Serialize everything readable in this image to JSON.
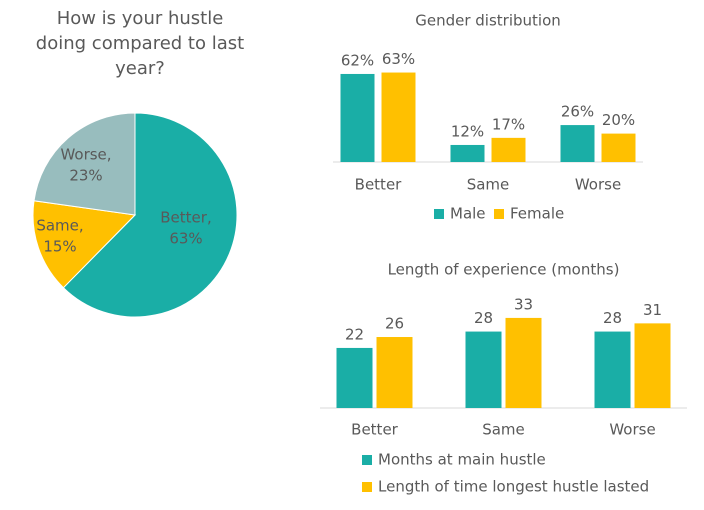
{
  "chart_data": [
    {
      "type": "pie",
      "title": "How is your hustle doing compared to last year?",
      "categories": [
        "Better,",
        "Same,",
        "Worse,"
      ],
      "values": [
        63,
        15,
        23
      ],
      "value_labels": [
        "63%",
        "15%",
        "23%"
      ],
      "colors": [
        "#1aaea6",
        "#ffc000",
        "#98bdbe"
      ]
    },
    {
      "type": "bar",
      "title": "Gender distribution",
      "categories": [
        "Better",
        "Same",
        "Worse"
      ],
      "series": [
        {
          "name": "Male",
          "color": "#1aaea6",
          "values": [
            62,
            12,
            26
          ],
          "value_labels": [
            "62%",
            "12%",
            "26%"
          ]
        },
        {
          "name": "Female",
          "color": "#ffc000",
          "values": [
            63,
            17,
            20
          ],
          "value_labels": [
            "63%",
            "17%",
            "20%"
          ]
        }
      ]
    },
    {
      "type": "bar",
      "title": "Length of experience (months)",
      "categories": [
        "Better",
        "Same",
        "Worse"
      ],
      "series": [
        {
          "name": "Months at main hustle",
          "color": "#1aaea6",
          "values": [
            22,
            28,
            28
          ]
        },
        {
          "name": "Length of time longest hustle lasted",
          "color": "#ffc000",
          "values": [
            26,
            33,
            31
          ]
        }
      ]
    }
  ]
}
